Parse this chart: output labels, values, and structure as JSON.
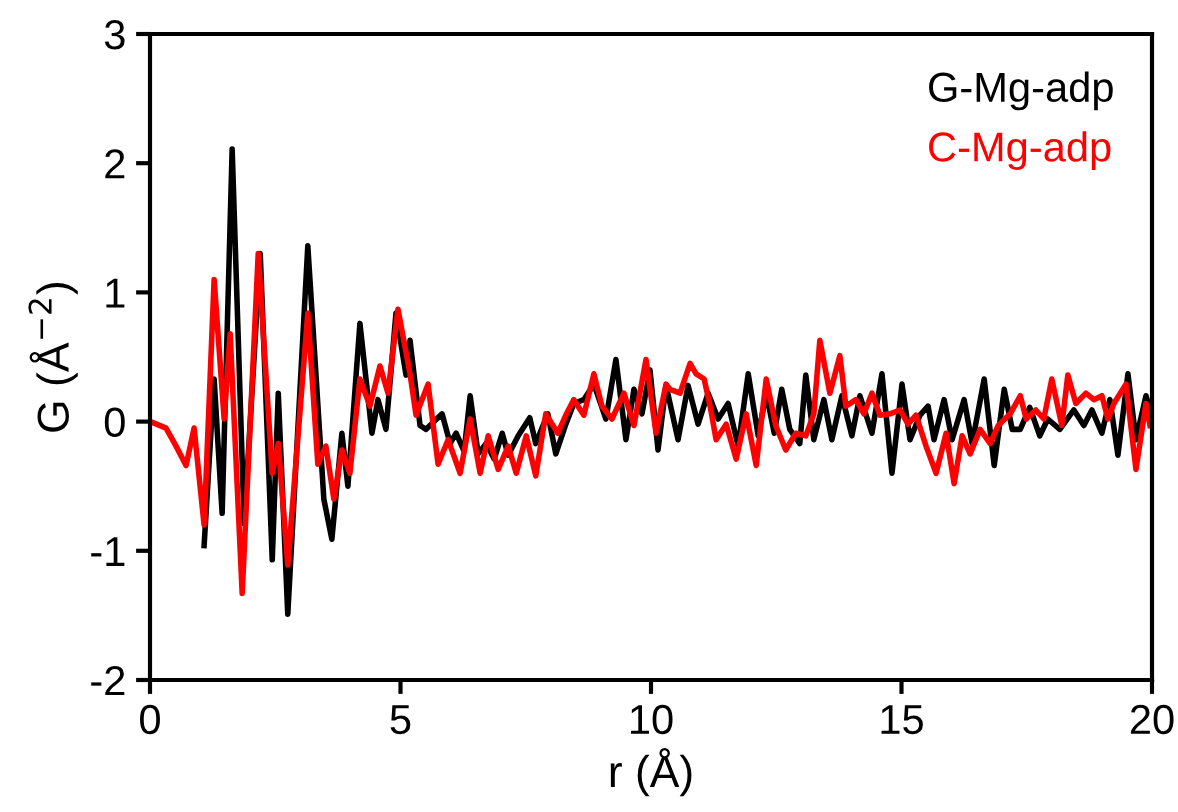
{
  "chart_data": {
    "type": "line",
    "xlabel": "r (Å)",
    "ylabel": "G (Å$^{−2}$)",
    "xlim": [
      0,
      20
    ],
    "ylim": [
      -2,
      3
    ],
    "xticks": [
      0,
      5,
      10,
      15,
      20
    ],
    "yticks": [
      -2,
      -1,
      0,
      1,
      2,
      3
    ],
    "grid": false,
    "legend": "top right",
    "marker": "none",
    "line_style": "solid",
    "series": [
      {
        "name": "G-Mg-adp",
        "color": "#000000",
        "x": [
          1.08,
          1.28,
          1.44,
          1.64,
          1.88,
          2.2,
          2.44,
          2.56,
          2.75,
          3.15,
          3.47,
          3.63,
          3.83,
          3.95,
          4.19,
          4.43,
          4.55,
          4.71,
          4.91,
          5.11,
          5.19,
          5.39,
          5.51,
          5.83,
          5.99,
          6.11,
          6.27,
          6.39,
          6.55,
          6.71,
          6.87,
          7.03,
          7.15,
          7.35,
          7.58,
          7.7,
          7.94,
          8.1,
          8.3,
          8.46,
          8.66,
          8.86,
          9.1,
          9.3,
          9.5,
          9.66,
          9.82,
          9.98,
          10.14,
          10.3,
          10.54,
          10.74,
          10.94,
          11.14,
          11.34,
          11.54,
          11.74,
          11.94,
          12.14,
          12.3,
          12.46,
          12.61,
          12.77,
          12.97,
          13.09,
          13.25,
          13.45,
          13.61,
          13.81,
          14.01,
          14.17,
          14.41,
          14.61,
          14.81,
          15.01,
          15.17,
          15.37,
          15.53,
          15.65,
          15.85,
          16.01,
          16.25,
          16.41,
          16.65,
          16.85,
          17.05,
          17.21,
          17.37,
          17.56,
          17.76,
          17.92,
          18.16,
          18.44,
          18.64,
          18.8,
          19.0,
          19.16,
          19.32,
          19.52,
          19.68,
          19.88,
          19.96
        ],
        "values": [
          -0.96,
          0.33,
          -0.71,
          2.11,
          -0.79,
          1.3,
          -1.07,
          0.22,
          -1.49,
          1.36,
          -0.6,
          -0.91,
          -0.09,
          -0.5,
          0.76,
          -0.09,
          0.17,
          -0.06,
          0.84,
          0.36,
          0.63,
          -0.03,
          -0.06,
          0.06,
          -0.17,
          -0.09,
          -0.23,
          0.2,
          -0.25,
          -0.17,
          -0.29,
          -0.09,
          -0.26,
          -0.11,
          0.03,
          -0.17,
          0.06,
          -0.25,
          -0.02,
          0.14,
          0.17,
          0.29,
          0.02,
          0.48,
          -0.14,
          0.25,
          0.06,
          0.4,
          -0.22,
          0.28,
          -0.14,
          0.28,
          -0.02,
          0.22,
          0.02,
          0.14,
          -0.19,
          0.37,
          -0.11,
          0.22,
          -0.09,
          0.25,
          -0.06,
          -0.17,
          0.36,
          -0.14,
          0.17,
          -0.14,
          0.2,
          -0.11,
          0.2,
          -0.09,
          0.37,
          -0.4,
          0.29,
          -0.14,
          0.05,
          0.12,
          -0.14,
          0.17,
          -0.14,
          0.17,
          -0.17,
          0.33,
          -0.34,
          0.25,
          -0.06,
          -0.06,
          0.11,
          -0.11,
          0.02,
          -0.06,
          0.09,
          -0.03,
          0.09,
          -0.09,
          0.17,
          -0.26,
          0.37,
          -0.14,
          0.2,
          0.09
        ]
      },
      {
        "name": "C-Mg-adp",
        "color": "#ff0000",
        "x": [
          0.07,
          0.32,
          0.52,
          0.72,
          0.88,
          1.08,
          1.28,
          1.48,
          1.6,
          1.84,
          2.16,
          2.44,
          2.56,
          2.75,
          3.15,
          3.35,
          3.51,
          3.67,
          3.83,
          3.99,
          4.19,
          4.39,
          4.59,
          4.75,
          4.95,
          5.19,
          5.31,
          5.55,
          5.75,
          5.95,
          6.19,
          6.39,
          6.59,
          6.75,
          6.95,
          7.15,
          7.31,
          7.51,
          7.7,
          7.9,
          8.14,
          8.3,
          8.46,
          8.66,
          8.86,
          9.02,
          9.22,
          9.46,
          9.66,
          9.9,
          10.1,
          10.3,
          10.38,
          10.58,
          10.78,
          10.9,
          11.06,
          11.18,
          11.3,
          11.5,
          11.7,
          11.9,
          12.1,
          12.3,
          12.49,
          12.69,
          12.89,
          13.09,
          13.25,
          13.37,
          13.57,
          13.77,
          13.89,
          14.09,
          14.25,
          14.41,
          14.57,
          14.77,
          14.97,
          15.13,
          15.29,
          15.49,
          15.69,
          15.89,
          16.05,
          16.21,
          16.37,
          16.57,
          16.77,
          16.93,
          17.17,
          17.37,
          17.49,
          17.68,
          17.84,
          18.0,
          18.2,
          18.32,
          18.48,
          18.68,
          18.84,
          19.0,
          19.12,
          19.24,
          19.48,
          19.68,
          19.88,
          19.96
        ],
        "values": [
          -0.01,
          -0.05,
          -0.19,
          -0.34,
          -0.05,
          -0.8,
          1.1,
          0.02,
          0.68,
          -1.33,
          1.3,
          -0.4,
          -0.17,
          -1.11,
          0.84,
          -0.33,
          -0.19,
          -0.6,
          -0.22,
          -0.4,
          0.33,
          0.12,
          0.43,
          0.22,
          0.87,
          0.37,
          0.05,
          0.29,
          -0.33,
          -0.14,
          -0.4,
          0.02,
          -0.4,
          -0.11,
          -0.37,
          -0.19,
          -0.4,
          -0.11,
          -0.42,
          0.06,
          -0.09,
          0.05,
          0.17,
          0.05,
          0.37,
          0.12,
          0.02,
          0.22,
          -0.03,
          0.48,
          -0.09,
          0.29,
          0.25,
          0.22,
          0.45,
          0.37,
          0.33,
          0.12,
          -0.14,
          -0.02,
          -0.29,
          0.06,
          -0.34,
          0.33,
          -0.03,
          -0.22,
          -0.09,
          -0.11,
          0.06,
          0.63,
          0.22,
          0.51,
          0.12,
          0.17,
          0.06,
          0.22,
          0.05,
          0.06,
          0.09,
          -0.02,
          0.05,
          -0.19,
          -0.4,
          -0.09,
          -0.48,
          -0.11,
          -0.25,
          -0.06,
          -0.17,
          -0.03,
          0.06,
          0.2,
          0.02,
          0.09,
          0.02,
          0.33,
          -0.03,
          0.36,
          0.14,
          0.22,
          0.17,
          0.2,
          0.02,
          0.14,
          0.29,
          -0.37,
          0.14,
          -0.03
        ]
      }
    ]
  }
}
